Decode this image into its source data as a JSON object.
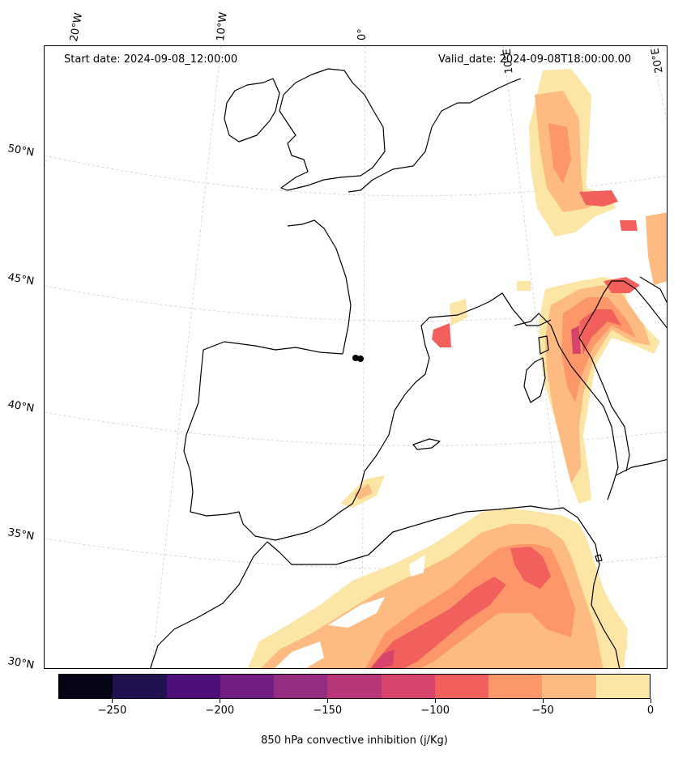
{
  "header": {
    "start_date": "Start date: 2024-09-08_12:00:00",
    "valid_date": "Valid_date: 2024-09-08T18:00:00.00"
  },
  "map": {
    "projection": "conic",
    "extent_lon": [
      -15,
      20
    ],
    "extent_lat": [
      30,
      55
    ],
    "gridlines": true,
    "coastlines": true,
    "lon_labels": [
      "20°W",
      "10°W",
      "0°",
      "10°E",
      "20°E"
    ],
    "lat_labels": [
      "50°N",
      "45°N",
      "40°N",
      "35°N",
      "30°N"
    ]
  },
  "field": {
    "variable": "850 hPa convective inhibition",
    "colormap": "magma"
  },
  "colorbar": {
    "label": "850 hPa convective inhibition (j/Kg)",
    "ticks": [
      "−250",
      "−200",
      "−150",
      "−100",
      "−50",
      "0"
    ],
    "tick_values": [
      -250,
      -200,
      -150,
      -100,
      -50,
      0
    ],
    "range": [
      -275,
      0
    ],
    "levels": [
      -275,
      -250,
      -225,
      -200,
      -175,
      -150,
      -125,
      -100,
      -75,
      -50,
      -25,
      0
    ],
    "colors": [
      "#050417",
      "#221150",
      "#4f0f7b",
      "#721f81",
      "#942c80",
      "#b73779",
      "#d8456c",
      "#f1605d",
      "#fd9668",
      "#febb81",
      "#fce6a6"
    ]
  }
}
